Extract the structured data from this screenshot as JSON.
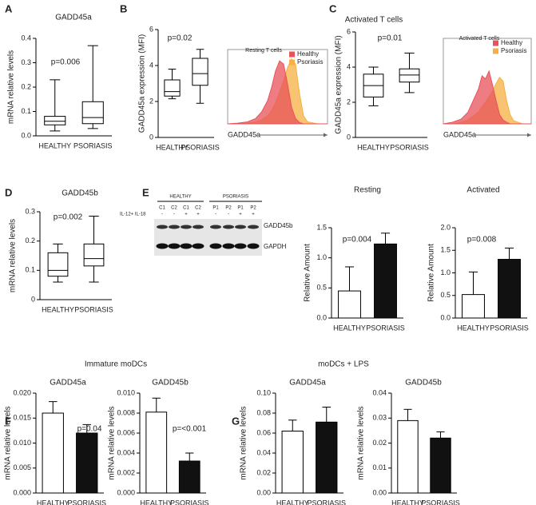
{
  "chart_data": [
    {
      "type": "box",
      "panel_label": "A",
      "title": "GADD45a",
      "annotation": "p=0.006",
      "ylabel": "mRNA relative levels",
      "categories": [
        "HEALTHY",
        "PSORIASIS"
      ],
      "boxes": [
        {
          "min": 0.02,
          "q1": 0.045,
          "median": 0.06,
          "q3": 0.08,
          "max": 0.23
        },
        {
          "min": 0.03,
          "q1": 0.05,
          "median": 0.075,
          "q3": 0.14,
          "max": 0.37
        }
      ],
      "ylim": [
        0,
        0.4
      ],
      "yticks": [
        {
          "value": 0,
          "label": "0.0"
        },
        0.1,
        0.2,
        0.3,
        0.4
      ]
    },
    {
      "type": "box",
      "panel_label": "B",
      "annotation": "p=0.02",
      "ylabel": "GADD45a expression (MFI)",
      "categories": [
        "HEALTHY",
        "PSORIASIS"
      ],
      "boxes": [
        {
          "min": 2.15,
          "q1": 2.3,
          "median": 2.55,
          "q3": 3.2,
          "max": 3.8
        },
        {
          "min": 1.9,
          "q1": 2.9,
          "median": 3.55,
          "q3": 4.4,
          "max": 4.9
        }
      ],
      "ylim": [
        0,
        6
      ],
      "yticks": [
        0,
        2,
        4,
        6
      ]
    },
    {
      "type": "area",
      "title": "Resting T cells",
      "xlabel": "GADD45a",
      "x": [
        20,
        25,
        30,
        34,
        37,
        40,
        42,
        44,
        46,
        48,
        50,
        52,
        54,
        56,
        58,
        60,
        65,
        70
      ],
      "series": [
        {
          "name": "Healthy",
          "color": "#e8525a",
          "values": [
            0,
            1,
            3,
            8,
            18,
            35,
            55,
            80,
            95,
            90,
            60,
            25,
            8,
            2,
            0,
            0,
            0,
            0
          ]
        },
        {
          "name": "Psoriasis",
          "color": "#f5b041",
          "values": [
            0,
            0,
            1,
            3,
            6,
            12,
            20,
            32,
            48,
            65,
            85,
            98,
            90,
            45,
            12,
            3,
            0,
            0
          ]
        }
      ],
      "xlim": [
        20,
        70
      ],
      "ylim": [
        0,
        100
      ]
    },
    {
      "type": "box",
      "panel_label": "C",
      "title": "Activated T cells",
      "annotation": "p=0.01",
      "ylabel": "GADD45a expression (MFI)",
      "categories": [
        "HEALTHY",
        "PSORIASIS"
      ],
      "boxes": [
        {
          "min": 1.8,
          "q1": 2.3,
          "median": 2.95,
          "q3": 3.6,
          "max": 4.0
        },
        {
          "min": 2.55,
          "q1": 3.15,
          "median": 3.55,
          "q3": 3.9,
          "max": 4.8
        }
      ],
      "ylim": [
        0,
        6
      ],
      "yticks": [
        0,
        2,
        4,
        6
      ]
    },
    {
      "type": "area",
      "title": "Activated T cells",
      "xlabel": "GADD45a",
      "x": [
        20,
        25,
        30,
        34,
        37,
        40,
        42,
        44,
        46,
        48,
        50,
        52,
        54,
        56,
        58,
        60,
        65,
        70
      ],
      "series": [
        {
          "name": "Healthy",
          "color": "#e8525a",
          "values": [
            0,
            2,
            6,
            15,
            30,
            45,
            62,
            58,
            68,
            50,
            30,
            12,
            5,
            2,
            0,
            0,
            0,
            0
          ]
        },
        {
          "name": "Psoriasis",
          "color": "#f5b041",
          "values": [
            0,
            0,
            2,
            5,
            10,
            15,
            22,
            28,
            35,
            42,
            52,
            60,
            55,
            30,
            12,
            4,
            0,
            0
          ]
        }
      ],
      "xlim": [
        20,
        70
      ],
      "ylim": [
        0,
        100
      ]
    },
    {
      "type": "box",
      "panel_label": "D",
      "title": "GADD45b",
      "annotation": "p=0.002",
      "ylabel": "mRNA relative levels",
      "categories": [
        "HEALTHY",
        "PSORIASIS"
      ],
      "boxes": [
        {
          "min": 0.06,
          "q1": 0.08,
          "median": 0.1,
          "q3": 0.16,
          "max": 0.19
        },
        {
          "min": 0.06,
          "q1": 0.115,
          "median": 0.14,
          "q3": 0.19,
          "max": 0.285
        }
      ],
      "ylim": [
        0,
        0.3
      ],
      "yticks": [
        0,
        0.1,
        0.2,
        0.3
      ]
    },
    {
      "type": "bar",
      "title": "Resting",
      "annotation": "p=0.004",
      "ylabel": "Relative Amount",
      "categories": [
        "HEALTHY",
        "PSORIASIS"
      ],
      "values": [
        0.45,
        1.23
      ],
      "errors": [
        0.4,
        0.18
      ],
      "colors": [
        "#ffffff",
        "#111111"
      ],
      "ylim": [
        0,
        1.5
      ],
      "yticks": [
        {
          "value": 0,
          "label": "0.0"
        },
        0.5,
        {
          "value": 1,
          "label": "1.0"
        },
        1.5
      ]
    },
    {
      "type": "bar",
      "title": "Activated",
      "annotation": "p=0.008",
      "ylabel": "Relative Amount",
      "categories": [
        "HEALTHY",
        "PSORIASIS"
      ],
      "values": [
        0.52,
        1.3
      ],
      "errors": [
        0.5,
        0.25
      ],
      "colors": [
        "#ffffff",
        "#111111"
      ],
      "ylim": [
        0,
        2
      ],
      "yticks": [
        {
          "value": 0,
          "label": "0.0"
        },
        0.5,
        {
          "value": 1,
          "label": "1.0"
        },
        1.5,
        {
          "value": 2,
          "label": "2.0"
        }
      ]
    },
    {
      "type": "bar",
      "panel_label": "F",
      "group_title": "Immature moDCs",
      "title": "GADD45a",
      "annotation": "p=0.04",
      "ylabel": "mRNA relative levels",
      "categories": [
        "HEALTHY",
        "PSORIASIS"
      ],
      "values": [
        0.016,
        0.012
      ],
      "errors": [
        0.0023,
        0.0017
      ],
      "colors": [
        "#ffffff",
        "#111111"
      ],
      "ylim": [
        0,
        0.02
      ],
      "yticks": [
        {
          "value": 0,
          "label": "0.000"
        },
        0.005,
        {
          "value": 0.01,
          "label": "0.010"
        },
        0.015,
        {
          "value": 0.02,
          "label": "0.020"
        }
      ]
    },
    {
      "type": "bar",
      "title": "GADD45b",
      "annotation": "p=<0.001",
      "ylabel": "mRNA relative levels",
      "categories": [
        "HEALTHY",
        "PSORIASIS"
      ],
      "values": [
        0.0081,
        0.0032
      ],
      "errors": [
        0.0014,
        0.0008
      ],
      "colors": [
        "#ffffff",
        "#111111"
      ],
      "ylim": [
        0,
        0.01
      ],
      "yticks": [
        {
          "value": 0,
          "label": "0.000"
        },
        0.002,
        0.004,
        0.006,
        0.008,
        {
          "value": 0.01,
          "label": "0.010"
        }
      ]
    },
    {
      "type": "bar",
      "panel_label": "G",
      "group_title": "moDCs + LPS",
      "title": "GADD45a",
      "ylabel": "mRNA relative levels",
      "categories": [
        "HEALTHY",
        "PSORIASIS"
      ],
      "values": [
        0.062,
        0.071
      ],
      "errors": [
        0.011,
        0.015
      ],
      "colors": [
        "#ffffff",
        "#111111"
      ],
      "ylim": [
        0,
        0.1
      ],
      "yticks": [
        {
          "value": 0,
          "label": "0.00"
        },
        0.02,
        0.04,
        0.06,
        0.08,
        {
          "value": 0.1,
          "label": "0.10"
        }
      ]
    },
    {
      "type": "bar",
      "title": "GADD45b",
      "ylabel": "mRNA relative levels",
      "categories": [
        "HEALTHY",
        "PSORIASIS"
      ],
      "values": [
        0.029,
        0.022
      ],
      "errors": [
        0.0045,
        0.0025
      ],
      "colors": [
        "#ffffff",
        "#111111"
      ],
      "ylim": [
        0,
        0.04
      ],
      "yticks": [
        {
          "value": 0,
          "label": "0.00"
        },
        0.01,
        0.02,
        0.03,
        0.04
      ]
    }
  ],
  "blot": {
    "panel_label": "E",
    "groups": [
      "HEALTHY",
      "PSORIASIS"
    ],
    "lanes": [
      "C1",
      "C2",
      "C1",
      "C2",
      "P1",
      "P2",
      "P1",
      "P2"
    ],
    "treatment_label": "IL-12+ IL-18",
    "treatment": [
      "-",
      "-",
      "+",
      "+",
      "-",
      "-",
      "+",
      "+"
    ],
    "bands": [
      "GADD45b",
      "GAPDH"
    ]
  }
}
